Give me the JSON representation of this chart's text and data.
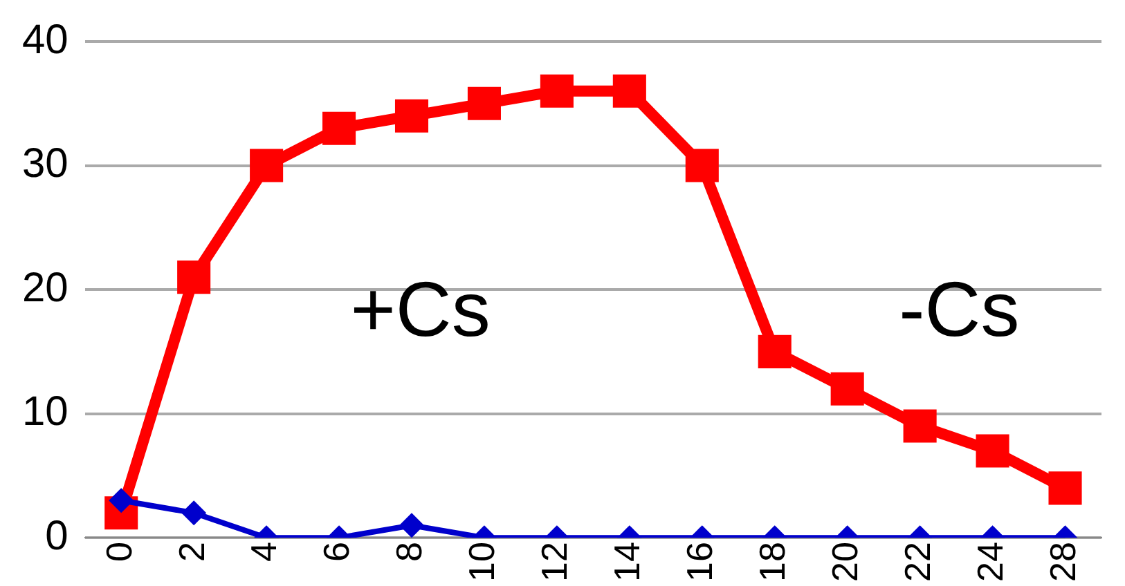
{
  "chart_data": {
    "type": "line",
    "categories": [
      "0",
      "2",
      "4",
      "6",
      "8",
      "10",
      "12",
      "14",
      "16",
      "18",
      "20",
      "22",
      "24",
      "28"
    ],
    "series": [
      {
        "color": "#ff0000",
        "marker": "square",
        "values": [
          2,
          21,
          30,
          33,
          34,
          35,
          36,
          36,
          30,
          15,
          12,
          9,
          7,
          4
        ]
      },
      {
        "color": "#0000cc",
        "marker": "diamond",
        "values": [
          3,
          2,
          0,
          0,
          1,
          0,
          0,
          0,
          0,
          0,
          0,
          0,
          0,
          0
        ]
      }
    ],
    "ylim": [
      0,
      40
    ],
    "yticks": [
      0,
      10,
      20,
      30,
      40
    ],
    "grid": "y",
    "legend": false,
    "line_style": "solid",
    "annotations": [
      "+Cs",
      "-Cs"
    ]
  }
}
